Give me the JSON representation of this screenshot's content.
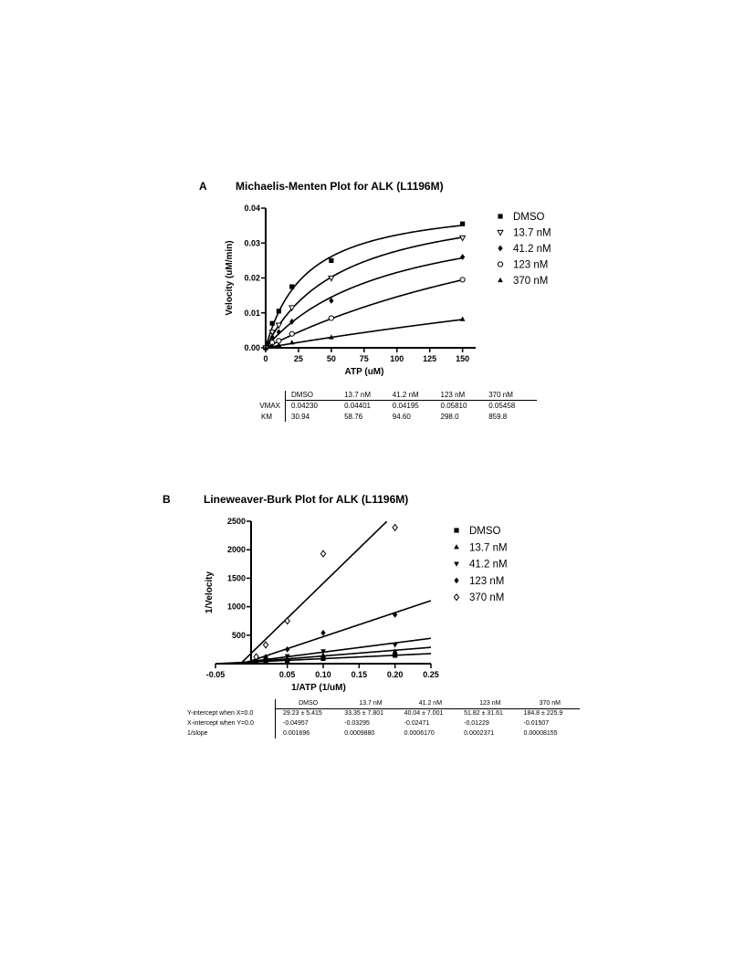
{
  "panel_a": {
    "letter": "A",
    "title": "Michaelis-Menten Plot for ALK (L1196M)",
    "table": {
      "columns": [
        "DMSO",
        "13.7 nM",
        "41.2 nM",
        "123 nM",
        "370 nM"
      ],
      "rows": [
        {
          "label": "VMAX",
          "values": [
            "0.04230",
            "0.04401",
            "0.04195",
            "0.05810",
            "0.05458"
          ]
        },
        {
          "label": "KM",
          "values": [
            "30.94",
            "58.76",
            "94.60",
            "298.0",
            "859.8"
          ]
        }
      ]
    }
  },
  "panel_b": {
    "letter": "B",
    "title": "Lineweaver-Burk Plot for ALK (L1196M)",
    "table": {
      "columns": [
        "DMSO",
        "13.7 nM",
        "41.2 nM",
        "123 nM",
        "370 nM"
      ],
      "rows": [
        {
          "label": "Y-intercept when X=0.0",
          "values": [
            "29.23 ± 5.415",
            "33.35 ± 7.801",
            "40.04 ± 7.001",
            "51.82 ± 31.61",
            "184.8 ± 225.9"
          ]
        },
        {
          "label": "X-intercept when Y=0.0",
          "values": [
            "-0.04957",
            "-0.03295",
            "-0.02471",
            "-0.01229",
            "-0.01507"
          ]
        },
        {
          "label": "1/slope",
          "values": [
            "0.001696",
            "0.0009880",
            "0.0006170",
            "0.0002371",
            "0.00008155"
          ]
        }
      ]
    }
  },
  "chart_data": [
    {
      "type": "scatter",
      "title": "Michaelis-Menten Plot for ALK (L1196M)",
      "xlabel": "ATP (uM)",
      "ylabel": "Velocity (uM/min)",
      "xlim": [
        0,
        160
      ],
      "ylim": [
        0,
        0.04
      ],
      "xticks": [
        0,
        25,
        50,
        75,
        100,
        125,
        150
      ],
      "xtick_labels": [
        "0",
        "25",
        "50",
        "75",
        "100",
        "125",
        "150"
      ],
      "yticks": [
        0,
        0.01,
        0.02,
        0.03,
        0.04
      ],
      "ytick_labels": [
        "0.00",
        "0.01",
        "0.02",
        "0.03",
        "0.04"
      ],
      "legend_position": "right",
      "fit": "michaelis-menten",
      "series": [
        {
          "name": "DMSO",
          "marker": "square",
          "vmax": 0.0423,
          "km": 30.94,
          "x": [
            0,
            5,
            10,
            20,
            50,
            150
          ],
          "y": [
            0.0,
            0.007,
            0.0105,
            0.0175,
            0.025,
            0.0355
          ]
        },
        {
          "name": "13.7 nM",
          "marker": "triangle-down-open",
          "vmax": 0.04401,
          "km": 58.76,
          "x": [
            0,
            5,
            10,
            20,
            50,
            150
          ],
          "y": [
            0.0,
            0.0045,
            0.0065,
            0.0115,
            0.02,
            0.0315
          ]
        },
        {
          "name": "41.2 nM",
          "marker": "diamond",
          "vmax": 0.04195,
          "km": 94.6,
          "x": [
            0,
            5,
            10,
            20,
            50,
            150
          ],
          "y": [
            0.0,
            0.003,
            0.0045,
            0.0075,
            0.0135,
            0.026
          ]
        },
        {
          "name": "123 nM",
          "marker": "circle-open",
          "vmax": 0.0581,
          "km": 298.0,
          "x": [
            0,
            5,
            10,
            20,
            50,
            150
          ],
          "y": [
            0.0,
            0.0015,
            0.002,
            0.004,
            0.0085,
            0.0195
          ]
        },
        {
          "name": "370 nM",
          "marker": "triangle-up",
          "vmax": 0.05458,
          "km": 859.8,
          "x": [
            0,
            5,
            10,
            20,
            50,
            150
          ],
          "y": [
            0.0,
            0.0005,
            0.0008,
            0.0015,
            0.003,
            0.0082
          ]
        }
      ]
    },
    {
      "type": "scatter",
      "title": "Lineweaver-Burk Plot for ALK (L1196M)",
      "xlabel": "1/ATP (1/uM)",
      "ylabel": "1/Velocity",
      "xlim": [
        -0.05,
        0.25
      ],
      "ylim": [
        0,
        2500
      ],
      "xticks": [
        -0.05,
        0.05,
        0.1,
        0.15,
        0.2,
        0.25
      ],
      "xtick_labels": [
        "-0.05",
        "0.05",
        "0.10",
        "0.15",
        "0.20",
        "0.25"
      ],
      "yticks": [
        500,
        1000,
        1500,
        2000,
        2500
      ],
      "ytick_labels": [
        "500",
        "1000",
        "1500",
        "2000",
        "2500"
      ],
      "legend_position": "right",
      "fit": "linear",
      "series": [
        {
          "name": "DMSO",
          "marker": "square",
          "intercept": 29.23,
          "slope": 589.6,
          "x": [
            0.0067,
            0.02,
            0.05,
            0.1,
            0.2
          ],
          "y": [
            29,
            57,
            40,
            90,
            145
          ]
        },
        {
          "name": "13.7 nM",
          "marker": "triangle-up",
          "intercept": 33.35,
          "slope": 1012.1,
          "x": [
            0.0067,
            0.02,
            0.05,
            0.1,
            0.2
          ],
          "y": [
            32,
            50,
            87,
            150,
            215
          ]
        },
        {
          "name": "41.2 nM",
          "marker": "triangle-down",
          "intercept": 40.04,
          "slope": 1620.7,
          "x": [
            0.0067,
            0.02,
            0.05,
            0.1,
            0.2
          ],
          "y": [
            38,
            74,
            133,
            220,
            330
          ]
        },
        {
          "name": "123 nM",
          "marker": "diamond",
          "intercept": 51.82,
          "slope": 4217.6,
          "x": [
            0.0067,
            0.02,
            0.05,
            0.1,
            0.2
          ],
          "y": [
            51,
            118,
            250,
            540,
            860
          ]
        },
        {
          "name": "370 nM",
          "marker": "diamond-open",
          "intercept": 184.8,
          "slope": 12262.4,
          "x": [
            0.0067,
            0.02,
            0.05,
            0.1,
            0.2
          ],
          "y": [
            120,
            330,
            750,
            1930,
            2390
          ]
        }
      ]
    }
  ]
}
